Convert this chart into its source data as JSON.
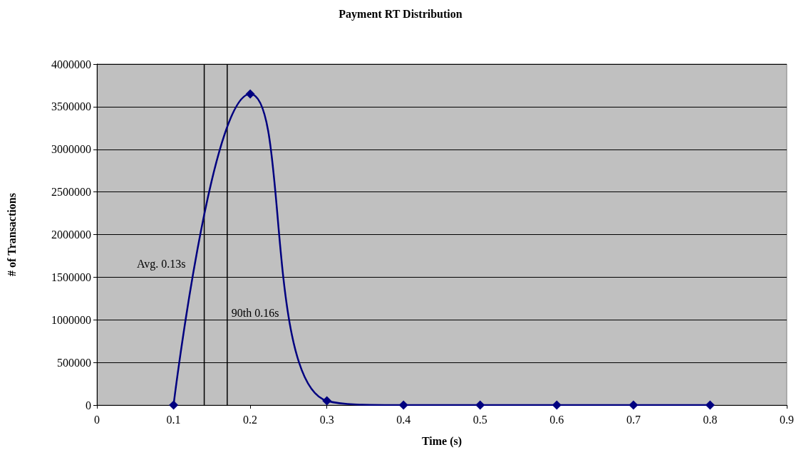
{
  "chart_data": {
    "type": "line",
    "title": "Payment RT Distribution",
    "xlabel": "Time (s)",
    "ylabel": "# of Transactions",
    "x": [
      0.1,
      0.2,
      0.3,
      0.4,
      0.5,
      0.6,
      0.7,
      0.8
    ],
    "series": [
      {
        "color": "#000080",
        "values": [
          0,
          3650000,
          50000,
          0,
          0,
          0,
          0,
          0
        ]
      }
    ],
    "xlim": [
      0,
      0.9
    ],
    "xticks": [
      0,
      0.1,
      0.2,
      0.3,
      0.4,
      0.5,
      0.6,
      0.7,
      0.8,
      0.9
    ],
    "ylim": [
      0,
      4000000
    ],
    "yticks": [
      0,
      500000,
      1000000,
      1500000,
      2000000,
      2500000,
      3000000,
      3500000,
      4000000
    ],
    "ref_lines": [
      {
        "axis": "x",
        "value": 0.14,
        "label": "Avg. 0.13s",
        "color": "#000000"
      },
      {
        "axis": "x",
        "value": 0.17,
        "label": "90th 0.16s",
        "color": "#000000"
      }
    ],
    "grid": "y",
    "marker": "diamond",
    "line_style": "solid"
  }
}
